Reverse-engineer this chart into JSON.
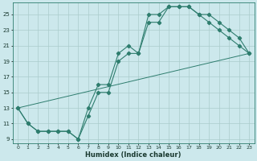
{
  "title": "",
  "xlabel": "Humidex (Indice chaleur)",
  "bg_color": "#cce8ec",
  "grid_color": "#aacccc",
  "line_color": "#2e7d6e",
  "xlim": [
    -0.5,
    23.5
  ],
  "ylim": [
    8.5,
    26.5
  ],
  "xticks": [
    0,
    1,
    2,
    3,
    4,
    5,
    6,
    7,
    8,
    9,
    10,
    11,
    12,
    13,
    14,
    15,
    16,
    17,
    18,
    19,
    20,
    21,
    22,
    23
  ],
  "yticks": [
    9,
    11,
    13,
    15,
    17,
    19,
    21,
    23,
    25
  ],
  "line1_x": [
    0,
    1,
    2,
    3,
    4,
    5,
    6,
    7,
    8,
    9,
    10,
    11,
    12,
    13,
    14,
    15,
    16,
    17,
    18,
    19,
    20,
    21,
    22,
    23
  ],
  "line1_y": [
    13,
    11,
    10,
    10,
    10,
    10,
    9,
    13,
    16,
    16,
    20,
    21,
    20,
    25,
    25,
    26,
    26,
    26,
    25,
    25,
    24,
    23,
    22,
    20
  ],
  "line2_x": [
    0,
    1,
    2,
    3,
    4,
    5,
    6,
    7,
    8,
    9,
    10,
    11,
    12,
    13,
    14,
    15,
    16,
    17,
    18,
    19,
    20,
    21,
    22,
    23
  ],
  "line2_y": [
    13,
    11,
    10,
    10,
    10,
    10,
    9,
    12,
    15,
    15,
    19,
    20,
    20,
    24,
    24,
    26,
    26,
    26,
    25,
    24,
    23,
    22,
    21,
    20
  ],
  "line3_x": [
    0,
    23
  ],
  "line3_y": [
    13,
    20
  ]
}
